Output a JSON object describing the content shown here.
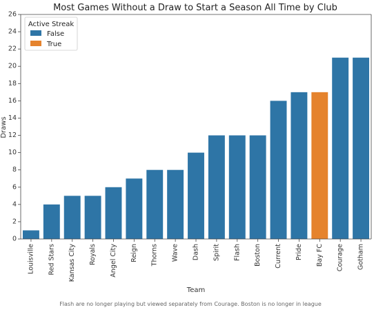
{
  "chart_data": {
    "type": "bar",
    "title": "Most Games Without a Draw to Start a Season All Time by Club",
    "xlabel": "Team",
    "ylabel": "Draws",
    "ylim": [
      0,
      26
    ],
    "yticks": [
      0,
      2,
      4,
      6,
      8,
      10,
      12,
      14,
      16,
      18,
      20,
      22,
      24,
      26
    ],
    "grid": false,
    "categories": [
      "Louisville",
      "Red Stars",
      "Kansas City",
      "Royals",
      "Angel City",
      "Reign",
      "Thorns",
      "Wave",
      "Dash",
      "Spirit",
      "Flash",
      "Boston",
      "Current",
      "Pride",
      "Bay FC",
      "Courage",
      "Gotham"
    ],
    "values": [
      1,
      4,
      5,
      5,
      6,
      7,
      8,
      8,
      10,
      12,
      12,
      12,
      16,
      17,
      17,
      21,
      21
    ],
    "active_streak": [
      "False",
      "False",
      "False",
      "False",
      "False",
      "False",
      "False",
      "False",
      "False",
      "False",
      "False",
      "False",
      "False",
      "False",
      "True",
      "False",
      "False"
    ],
    "legend": {
      "title": "Active Streak",
      "placement": "top-left",
      "entries": [
        {
          "label": "False",
          "color": "#2e75a6"
        },
        {
          "label": "True",
          "color": "#e5832d"
        }
      ]
    },
    "footnote": "Flash are no longer playing but viewed separately from Courage. Boston is no longer in league"
  }
}
